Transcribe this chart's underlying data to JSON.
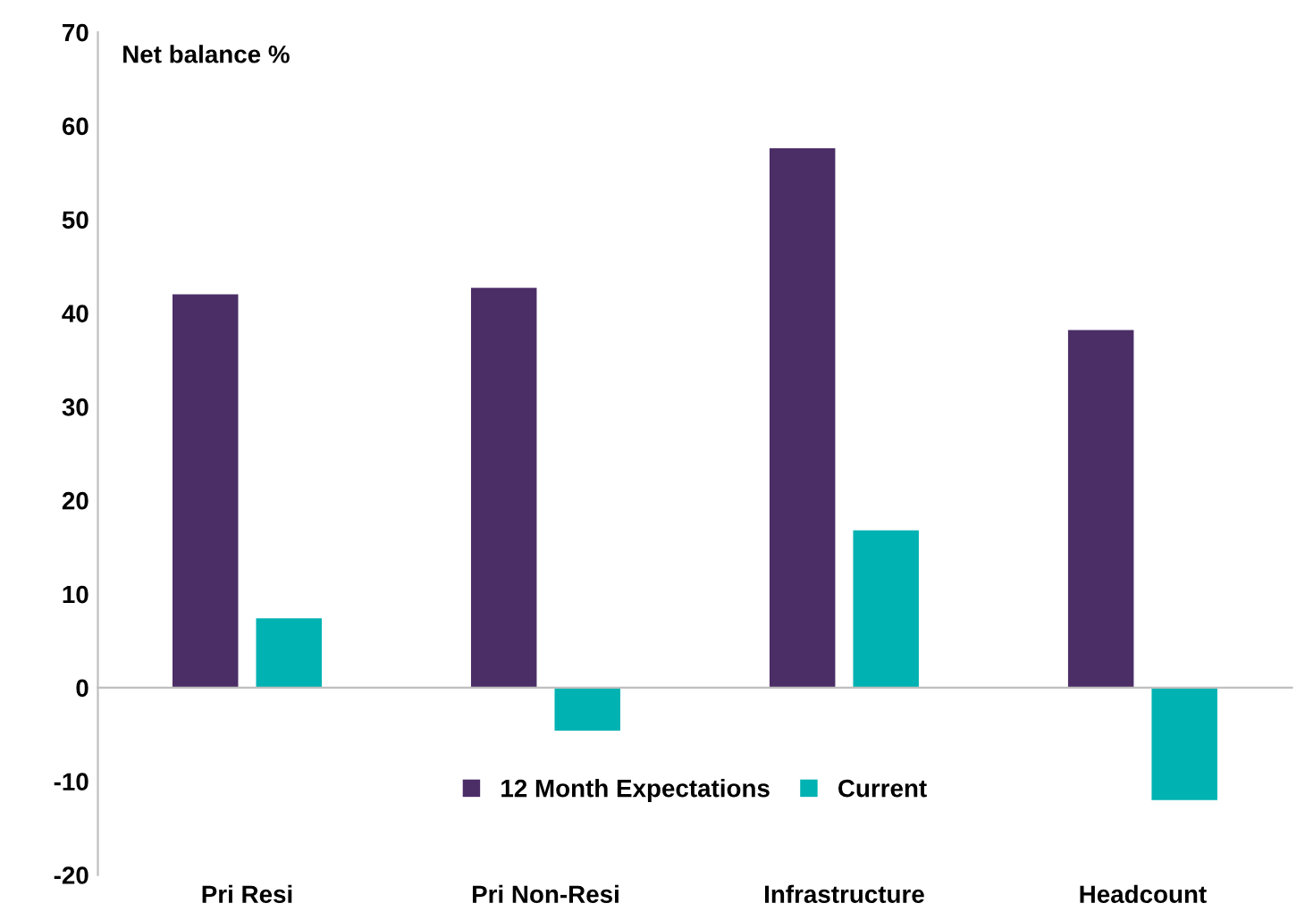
{
  "chart_data": {
    "type": "bar",
    "ylabel": "Net balance %",
    "categories": [
      "Pri Resi",
      "Pri Non-Resi",
      "Infrastructure",
      "Headcount"
    ],
    "series": [
      {
        "name": "12 Month Expectations",
        "color": "#4b2e66",
        "values": [
          42.0,
          42.7,
          57.6,
          38.2
        ]
      },
      {
        "name": "Current",
        "color": "#00b2b2",
        "values": [
          7.4,
          -4.6,
          16.8,
          -12.0
        ]
      }
    ],
    "ylim": [
      -20,
      70
    ],
    "yticks": [
      -20,
      -10,
      0,
      10,
      20,
      30,
      40,
      50,
      60,
      70
    ],
    "legend": "bottom"
  }
}
